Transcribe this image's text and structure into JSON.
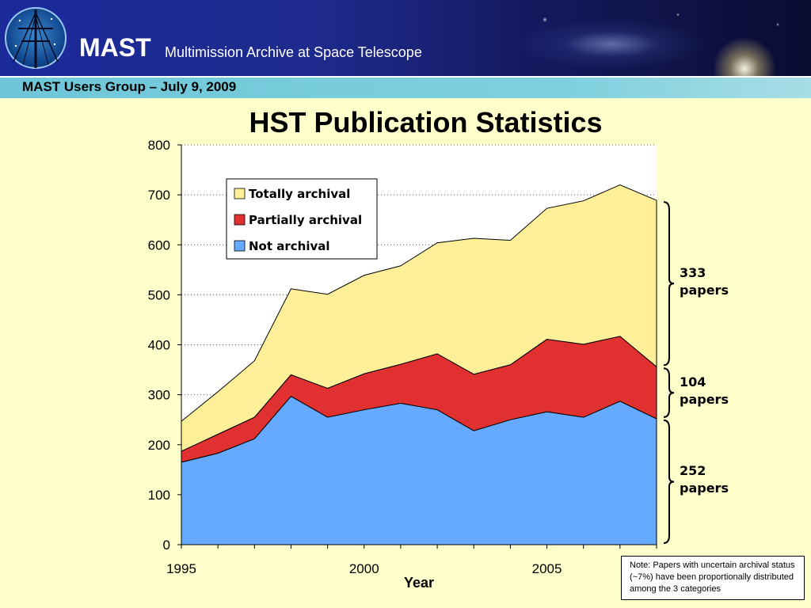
{
  "header": {
    "brand": "MAST",
    "brand_subtitle": "Multimission Archive at Space Telescope",
    "meeting": "MAST Users Group – July 9, 2009"
  },
  "chart_data": {
    "type": "area",
    "stacked": true,
    "title": "HST Publication Statistics",
    "xlabel": "Year",
    "ylabel": "",
    "x": [
      1995,
      1996,
      1997,
      1998,
      1999,
      2000,
      2001,
      2002,
      2003,
      2004,
      2005,
      2006,
      2007,
      2008
    ],
    "xlim": [
      1995,
      2008
    ],
    "ylim": [
      0,
      800
    ],
    "x_tick_labels": [
      "1995",
      "2000",
      "2005"
    ],
    "y_ticks": [
      "0",
      "100",
      "200",
      "300",
      "400",
      "500",
      "600",
      "700",
      "800"
    ],
    "grid": "horizontal dotted",
    "legend_position": "top-left",
    "series": [
      {
        "name": "Not archival",
        "color": "#66aaff",
        "values": [
          165,
          183,
          212,
          297,
          255,
          270,
          283,
          270,
          228,
          250,
          266,
          255,
          287,
          252
        ]
      },
      {
        "name": "Partially archival",
        "color": "#e03030",
        "values": [
          22,
          38,
          43,
          43,
          58,
          72,
          78,
          112,
          113,
          110,
          145,
          146,
          130,
          104
        ]
      },
      {
        "name": "Totally archival",
        "color": "#ffef99",
        "values": [
          60,
          85,
          113,
          172,
          188,
          197,
          197,
          222,
          272,
          249,
          262,
          287,
          303,
          333
        ]
      }
    ],
    "legend_order": [
      "Totally archival",
      "Partially archival",
      "Not archival"
    ],
    "annotations": [
      {
        "series": "Totally archival",
        "count": "333",
        "unit": "papers"
      },
      {
        "series": "Partially archival",
        "count": "104",
        "unit": "papers"
      },
      {
        "series": "Not archival",
        "count": "252",
        "unit": "papers"
      }
    ],
    "note": "Note: Papers with uncertain archival status (~7%) have been proportionally distributed among the 3 categories"
  }
}
